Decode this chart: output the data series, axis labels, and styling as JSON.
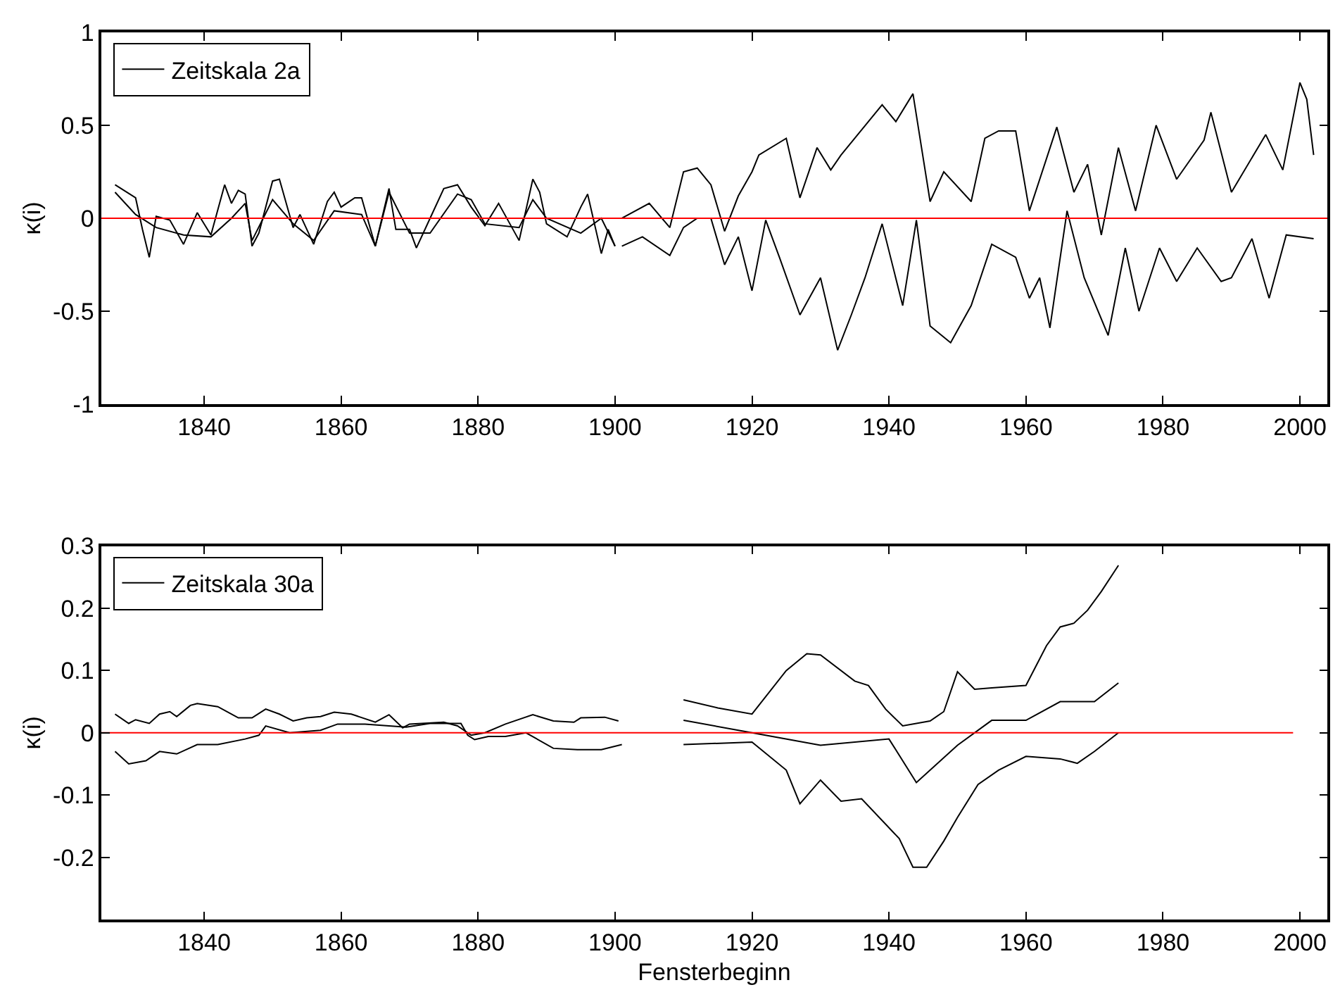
{
  "chart_data": [
    {
      "type": "line",
      "ylabel": "κ(i)",
      "xlim": [
        1825,
        2004
      ],
      "xticks": [
        1840,
        1860,
        1880,
        1900,
        1920,
        1940,
        1960,
        1980,
        2000
      ],
      "ylim": [
        -1,
        1
      ],
      "yticks": [
        -1,
        -0.5,
        0,
        0.5,
        1
      ],
      "legend": "top left",
      "ref_lines": [
        {
          "axis": "y",
          "value": 0,
          "color": "#ff0000"
        }
      ],
      "series": [
        {
          "name": "Zeitskala 2a",
          "color": "#000000",
          "x": [
            1827,
            1830,
            1831,
            1832,
            1833,
            1835,
            1837,
            1839,
            1841,
            1843,
            1844,
            1845,
            1846,
            1847,
            1848,
            1850,
            1851,
            1853,
            1854,
            1856,
            1858,
            1859,
            1860,
            1862,
            1863,
            1865,
            1867,
            1868,
            1870,
            1871,
            1873,
            1875,
            1877,
            1879,
            1881,
            1883,
            1886,
            1888,
            1889,
            1890,
            1893,
            1895,
            1896,
            1898,
            1899,
            1900
          ],
          "values": [
            0.18,
            0.11,
            -0.06,
            -0.21,
            0.01,
            -0.01,
            -0.14,
            0.03,
            -0.09,
            0.18,
            0.08,
            0.15,
            0.13,
            -0.15,
            -0.08,
            0.2,
            0.21,
            -0.05,
            0.02,
            -0.14,
            0.09,
            0.14,
            0.06,
            0.11,
            0.11,
            -0.15,
            0.16,
            -0.06,
            -0.06,
            -0.16,
            0,
            0.16,
            0.18,
            0.06,
            -0.04,
            0.08,
            -0.12,
            0.21,
            0.14,
            -0.03,
            -0.1,
            0.06,
            0.13,
            -0.19,
            -0.06,
            -0.15
          ]
        },
        {
          "color": "#000000",
          "x": [
            1827,
            1830,
            1833,
            1837,
            1841,
            1844,
            1846,
            1847,
            1850,
            1853,
            1856,
            1859,
            1863,
            1865,
            1867,
            1870,
            1873,
            1877,
            1879,
            1881,
            1886,
            1888,
            1890,
            1895,
            1898,
            1900
          ],
          "values": [
            0.14,
            0.02,
            -0.05,
            -0.09,
            -0.1,
            0,
            0.08,
            -0.12,
            0.1,
            -0.03,
            -0.12,
            0.04,
            0.02,
            -0.15,
            0.14,
            -0.08,
            -0.08,
            0.13,
            0.1,
            -0.03,
            -0.05,
            0.1,
            0,
            -0.08,
            0,
            -0.15
          ]
        },
        {
          "color": "#000000",
          "x": [
            1901,
            1905,
            1908,
            1910,
            1912,
            1914,
            1916,
            1918,
            1920,
            1921,
            1925,
            1927,
            1929.5,
            1931.5,
            1933,
            1935,
            1937,
            1939,
            1941,
            1943.5,
            1946,
            1948,
            1952,
            1954,
            1956,
            1958.5,
            1960.5,
            1964.5,
            1967,
            1969,
            1971,
            1973.5,
            1976,
            1979,
            1982,
            1986,
            1987,
            1990,
            1995,
            1997.5,
            2000,
            2001,
            2002
          ],
          "values": [
            0,
            0.08,
            -0.05,
            0.25,
            0.27,
            0.18,
            -0.07,
            0.12,
            0.25,
            0.34,
            0.43,
            0.11,
            0.38,
            0.26,
            0.34,
            0.43,
            0.52,
            0.61,
            0.52,
            0.67,
            0.09,
            0.25,
            0.09,
            0.43,
            0.47,
            0.47,
            0.04,
            0.49,
            0.14,
            0.29,
            -0.09,
            0.38,
            0.04,
            0.5,
            0.21,
            0.42,
            0.57,
            0.14,
            0.45,
            0.26,
            0.73,
            0.64,
            0.34
          ]
        },
        {
          "color": "#000000",
          "x": [
            1901,
            1904,
            1908,
            1910,
            1912,
            1914,
            1916,
            1918,
            1920,
            1922,
            1924,
            1927,
            1930,
            1932.5,
            1934.5,
            1936.5,
            1939,
            1942,
            1944,
            1946,
            1949,
            1952,
            1955,
            1958.5,
            1960.5,
            1962,
            1963.5,
            1966,
            1968.5,
            1972,
            1974.5,
            1976.5,
            1979.5,
            1982,
            1985,
            1988.5,
            1990,
            1993,
            1995.5,
            1998,
            2002
          ],
          "values": [
            -0.15,
            -0.1,
            -0.2,
            -0.05,
            0,
            0,
            -0.25,
            -0.1,
            -0.39,
            -0.01,
            -0.21,
            -0.52,
            -0.32,
            -0.71,
            -0.52,
            -0.32,
            -0.03,
            -0.47,
            -0.01,
            -0.58,
            -0.67,
            -0.47,
            -0.14,
            -0.21,
            -0.43,
            -0.32,
            -0.59,
            0.04,
            -0.32,
            -0.63,
            -0.16,
            -0.5,
            -0.16,
            -0.34,
            -0.16,
            -0.34,
            -0.32,
            -0.11,
            -0.43,
            -0.09,
            -0.11
          ]
        }
      ]
    },
    {
      "type": "line",
      "xlabel": "Fensterbeginn",
      "ylabel": "κ(i)",
      "xlim": [
        1825,
        2004
      ],
      "xticks": [
        1840,
        1860,
        1880,
        1900,
        1920,
        1940,
        1960,
        1980,
        2000
      ],
      "ylim": [
        -0.3,
        0.3
      ],
      "yticks": [
        -0.2,
        -0.1,
        0,
        0.1,
        0.2,
        0.3
      ],
      "legend": "top left",
      "series": [
        {
          "name": "Zeitskala 30a",
          "color": "#000000",
          "x": [
            1827,
            1829,
            1830,
            1832,
            1833.5,
            1835,
            1836,
            1838,
            1839,
            1842,
            1845,
            1847,
            1849,
            1851,
            1853,
            1855,
            1857,
            1859,
            1861.5,
            1865,
            1867,
            1869,
            1870,
            1875,
            1877,
            1879,
            1881,
            1884,
            1888,
            1891,
            1894,
            1895,
            1898.5,
            1900.5
          ],
          "values": [
            0.03,
            0.015,
            0.021,
            0.015,
            0.03,
            0.034,
            0.026,
            0.044,
            0.047,
            0.042,
            0.024,
            0.024,
            0.038,
            0.03,
            0.019,
            0.024,
            0.026,
            0.033,
            0.03,
            0.017,
            0.029,
            0.008,
            0.014,
            0.017,
            0.011,
            -0.004,
            0,
            0.014,
            0.029,
            0.019,
            0.017,
            0.024,
            0.025,
            0.019
          ]
        },
        {
          "color": "#000000",
          "x": [
            1827,
            1829,
            1831.5,
            1833.5,
            1836,
            1839,
            1842,
            1846,
            1848,
            1849,
            1852.5,
            1857,
            1859.5,
            1863.5,
            1867,
            1869.5,
            1873,
            1877.5,
            1878.5,
            1879.5,
            1881.5,
            1884,
            1887,
            1891,
            1894.5,
            1898,
            1901
          ],
          "values": [
            -0.03,
            -0.05,
            -0.045,
            -0.03,
            -0.034,
            -0.019,
            -0.019,
            -0.01,
            -0.004,
            0.011,
            0,
            0.004,
            0.014,
            0.014,
            0.011,
            0.009,
            0.015,
            0.015,
            -0.004,
            -0.011,
            -0.006,
            -0.006,
            0,
            -0.025,
            -0.027,
            -0.027,
            -0.019
          ]
        },
        {
          "color": "#000000",
          "x": [
            1910,
            1915,
            1920,
            1925,
            1928,
            1930,
            1935,
            1937,
            1939.5,
            1942,
            1946,
            1948,
            1950,
            1952.5,
            1955,
            1960,
            1963,
            1965,
            1967,
            1969,
            1971,
            1973.5
          ],
          "values": [
            0.053,
            0.04,
            0.03,
            0.1,
            0.127,
            0.125,
            0.083,
            0.076,
            0.038,
            0.011,
            0.019,
            0.034,
            0.098,
            0.07,
            0.072,
            0.076,
            0.14,
            0.17,
            0.176,
            0.197,
            0.227,
            0.269
          ]
        },
        {
          "color": "#000000",
          "x": [
            1910,
            1920,
            1925,
            1927,
            1930,
            1933,
            1936,
            1941.5,
            1943.5,
            1945.5,
            1948,
            1950,
            1953,
            1956,
            1960,
            1965,
            1967.5,
            1970,
            1973.5
          ],
          "values": [
            -0.019,
            -0.015,
            -0.06,
            -0.114,
            -0.076,
            -0.11,
            -0.106,
            -0.17,
            -0.216,
            -0.216,
            -0.174,
            -0.136,
            -0.083,
            -0.06,
            -0.038,
            -0.042,
            -0.049,
            -0.03,
            0
          ]
        },
        {
          "color": "#000000",
          "x": [
            1910,
            1920,
            1930,
            1940,
            1944,
            1950,
            1955,
            1960,
            1965,
            1970,
            1973.5
          ],
          "values": [
            0.02,
            0,
            -0.02,
            -0.01,
            -0.08,
            -0.02,
            0.02,
            0.02,
            0.05,
            0.05,
            0.08
          ]
        },
        {
          "color": "#ff0000",
          "x": [
            1825,
            1999
          ],
          "values": [
            0,
            0
          ]
        }
      ]
    }
  ]
}
